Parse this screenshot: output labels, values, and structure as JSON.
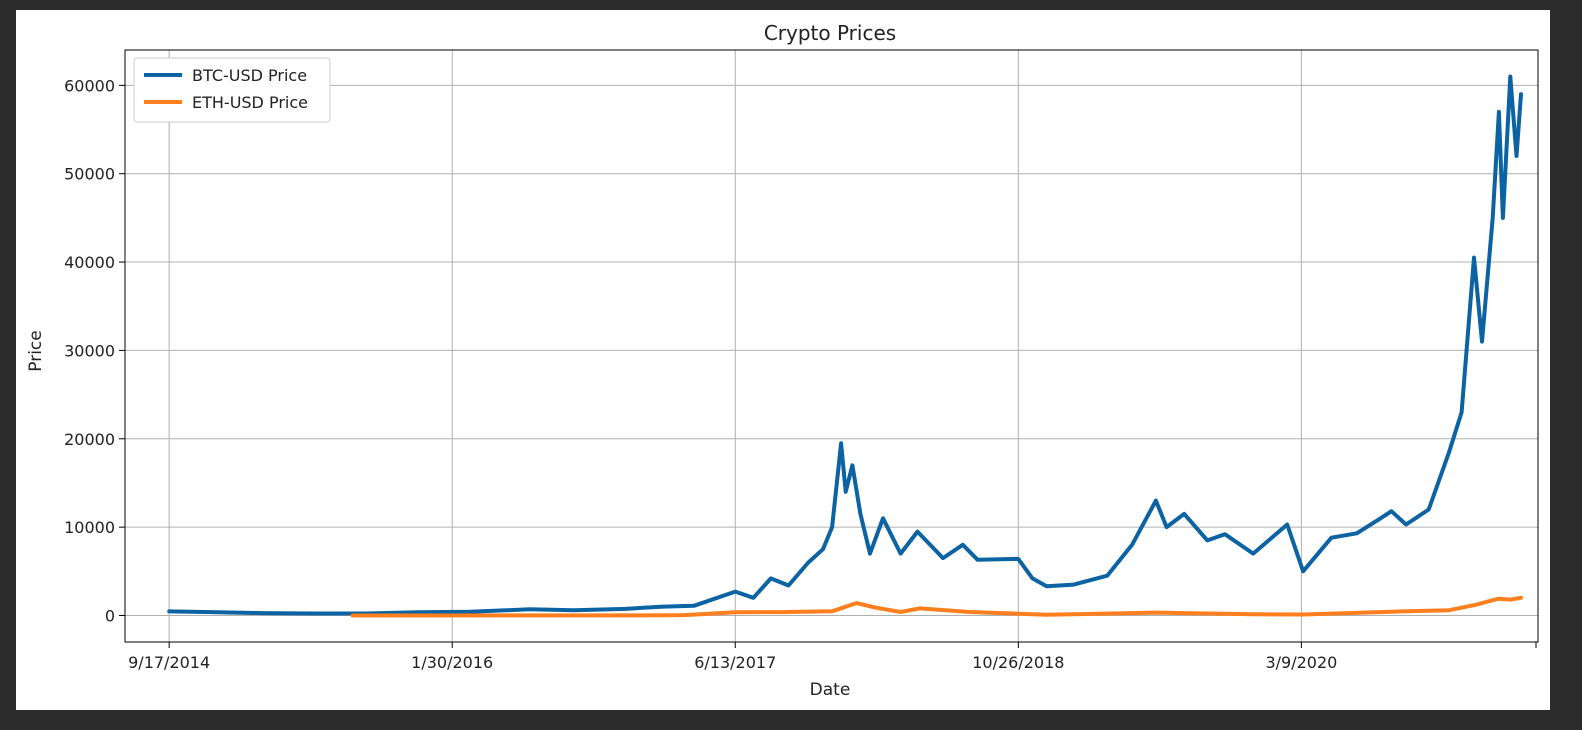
{
  "window": {
    "background": "#2b2b2b"
  },
  "chart_data": {
    "type": "line",
    "title": "Crypto Prices",
    "xlabel": "Date",
    "ylabel": "Price",
    "x_range": [
      "2014-07-01",
      "2021-05-01"
    ],
    "ylim": [
      -3000,
      64000
    ],
    "grid": true,
    "legend_position": "top-left",
    "x_tick_labels": [
      "9/17/2014",
      "1/30/2016",
      "6/13/2017",
      "10/26/2018",
      "3/9/2020"
    ],
    "x_tick_dates": [
      "2014-09-17",
      "2016-01-30",
      "2017-06-13",
      "2018-10-26",
      "2020-03-09"
    ],
    "y_ticks": [
      0,
      10000,
      20000,
      30000,
      40000,
      50000,
      60000
    ],
    "series": [
      {
        "name": "BTC-USD Price",
        "color": "#0c63a4",
        "points": [
          [
            "2014-09-17",
            460
          ],
          [
            "2014-12-01",
            380
          ],
          [
            "2015-03-01",
            270
          ],
          [
            "2015-06-01",
            230
          ],
          [
            "2015-09-01",
            230
          ],
          [
            "2015-12-01",
            370
          ],
          [
            "2016-03-01",
            420
          ],
          [
            "2016-06-15",
            700
          ],
          [
            "2016-09-01",
            600
          ],
          [
            "2016-12-01",
            750
          ],
          [
            "2017-02-01",
            1000
          ],
          [
            "2017-04-01",
            1100
          ],
          [
            "2017-06-13",
            2700
          ],
          [
            "2017-07-15",
            2000
          ],
          [
            "2017-08-15",
            4200
          ],
          [
            "2017-09-15",
            3400
          ],
          [
            "2017-10-20",
            6000
          ],
          [
            "2017-11-15",
            7500
          ],
          [
            "2017-12-01",
            10000
          ],
          [
            "2017-12-17",
            19500
          ],
          [
            "2017-12-25",
            14000
          ],
          [
            "2018-01-06",
            17000
          ],
          [
            "2018-01-20",
            11500
          ],
          [
            "2018-02-06",
            7000
          ],
          [
            "2018-03-01",
            11000
          ],
          [
            "2018-04-01",
            7000
          ],
          [
            "2018-05-01",
            9500
          ],
          [
            "2018-06-15",
            6500
          ],
          [
            "2018-07-20",
            8000
          ],
          [
            "2018-08-15",
            6300
          ],
          [
            "2018-10-26",
            6400
          ],
          [
            "2018-11-20",
            4200
          ],
          [
            "2018-12-15",
            3300
          ],
          [
            "2019-02-01",
            3500
          ],
          [
            "2019-04-01",
            4500
          ],
          [
            "2019-05-15",
            8000
          ],
          [
            "2019-06-26",
            13000
          ],
          [
            "2019-07-15",
            10000
          ],
          [
            "2019-08-15",
            11500
          ],
          [
            "2019-09-25",
            8500
          ],
          [
            "2019-10-26",
            9200
          ],
          [
            "2019-12-15",
            7000
          ],
          [
            "2020-02-13",
            10300
          ],
          [
            "2020-03-12",
            5000
          ],
          [
            "2020-05-01",
            8800
          ],
          [
            "2020-06-15",
            9300
          ],
          [
            "2020-07-27",
            11000
          ],
          [
            "2020-08-15",
            11800
          ],
          [
            "2020-09-10",
            10300
          ],
          [
            "2020-10-20",
            12000
          ],
          [
            "2020-11-25",
            18500
          ],
          [
            "2020-12-17",
            23000
          ],
          [
            "2021-01-08",
            40500
          ],
          [
            "2021-01-22",
            31000
          ],
          [
            "2021-02-10",
            45000
          ],
          [
            "2021-02-21",
            57000
          ],
          [
            "2021-02-28",
            45000
          ],
          [
            "2021-03-13",
            61000
          ],
          [
            "2021-03-24",
            52000
          ],
          [
            "2021-04-01",
            59000
          ]
        ]
      },
      {
        "name": "ETH-USD Price",
        "color": "#ff7f1e",
        "points": [
          [
            "2015-08-07",
            3
          ],
          [
            "2016-01-01",
            1
          ],
          [
            "2016-06-15",
            15
          ],
          [
            "2017-01-01",
            8
          ],
          [
            "2017-03-15",
            40
          ],
          [
            "2017-06-13",
            370
          ],
          [
            "2017-09-01",
            380
          ],
          [
            "2017-12-01",
            470
          ],
          [
            "2018-01-13",
            1400
          ],
          [
            "2018-02-15",
            900
          ],
          [
            "2018-04-01",
            400
          ],
          [
            "2018-05-05",
            800
          ],
          [
            "2018-08-01",
            400
          ],
          [
            "2018-10-26",
            200
          ],
          [
            "2018-12-15",
            90
          ],
          [
            "2019-06-26",
            330
          ],
          [
            "2019-12-15",
            130
          ],
          [
            "2020-03-12",
            110
          ],
          [
            "2020-08-15",
            430
          ],
          [
            "2020-11-25",
            600
          ],
          [
            "2021-01-10",
            1200
          ],
          [
            "2021-02-20",
            1900
          ],
          [
            "2021-03-13",
            1800
          ],
          [
            "2021-04-01",
            2000
          ]
        ]
      }
    ]
  }
}
